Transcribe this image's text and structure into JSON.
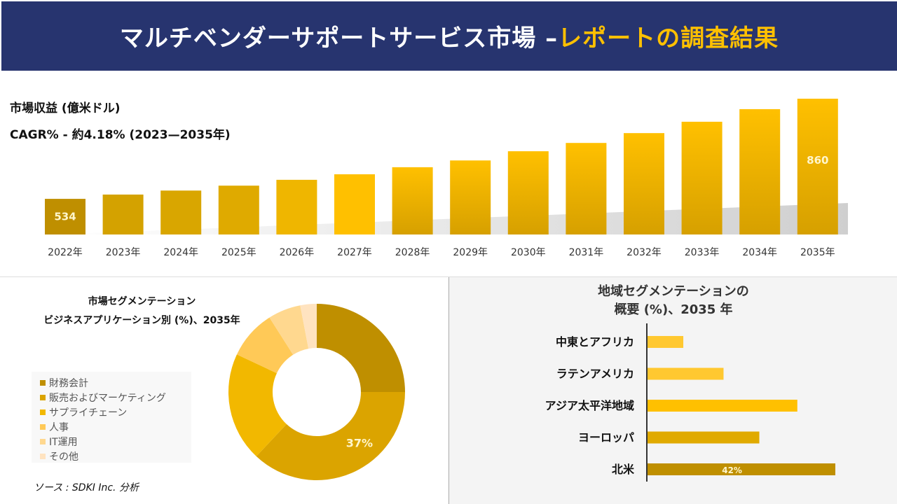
{
  "header": {
    "title_main": "マルチベンダーサポートサービス市場 –",
    "title_accent": "レポートの調査結果"
  },
  "revenue": {
    "label": "市場収益 (億米ドル)",
    "cagr": "CAGR% - 約4.18% (2023—2035年)"
  },
  "source": "ソース : SDKI Inc. 分析",
  "colors": {
    "header_bg": "#27346f",
    "accent": "#ffc000",
    "dark_gold": "#bf8f00"
  },
  "chart_data": [
    {
      "type": "bar",
      "categories": [
        "2022年",
        "2023年",
        "2024年",
        "2025年",
        "2026年",
        "2027年",
        "2028年",
        "2029年",
        "2030年",
        "2031年",
        "2032年",
        "2033年",
        "2034年",
        "2035年"
      ],
      "values": [
        534,
        548,
        561,
        577,
        596,
        614,
        637,
        659,
        689,
        716,
        748,
        785,
        826,
        860
      ],
      "data_labels": {
        "0": "534",
        "13": "860"
      },
      "ylabel": "市場収益 (億米ドル)"
    },
    {
      "type": "pie",
      "title": [
        "市場セグメンテーション",
        "ビジネスアプリケーション別 (%)、2035年"
      ],
      "labels": [
        "財務会計",
        "販売およびマーケティング",
        "サプライチェーン",
        "人事",
        "IT運用",
        "その他"
      ],
      "values": [
        25,
        37,
        20,
        9,
        6,
        3
      ],
      "colors": [
        "#bf8f00",
        "#dba400",
        "#f2b800",
        "#ffc957",
        "#ffd88f",
        "#ffe3c0"
      ],
      "data_labels": {
        "1": "37%"
      },
      "legend": "left"
    },
    {
      "type": "bar",
      "orientation": "horizontal",
      "title": [
        "地域セグメンテーションの",
        "概要 (%)、2035 年"
      ],
      "categories": [
        "中東とアフリカ",
        "ラテンアメリカ",
        "アジア太平洋地域",
        "ヨーロッパ",
        "北米"
      ],
      "values": [
        8,
        17,
        33.5,
        25,
        42
      ],
      "colors": [
        "#ffc830",
        "#ffc830",
        "#ffc000",
        "#e0aa00",
        "#bf8f00"
      ],
      "data_labels": {
        "4": "42%"
      }
    }
  ]
}
